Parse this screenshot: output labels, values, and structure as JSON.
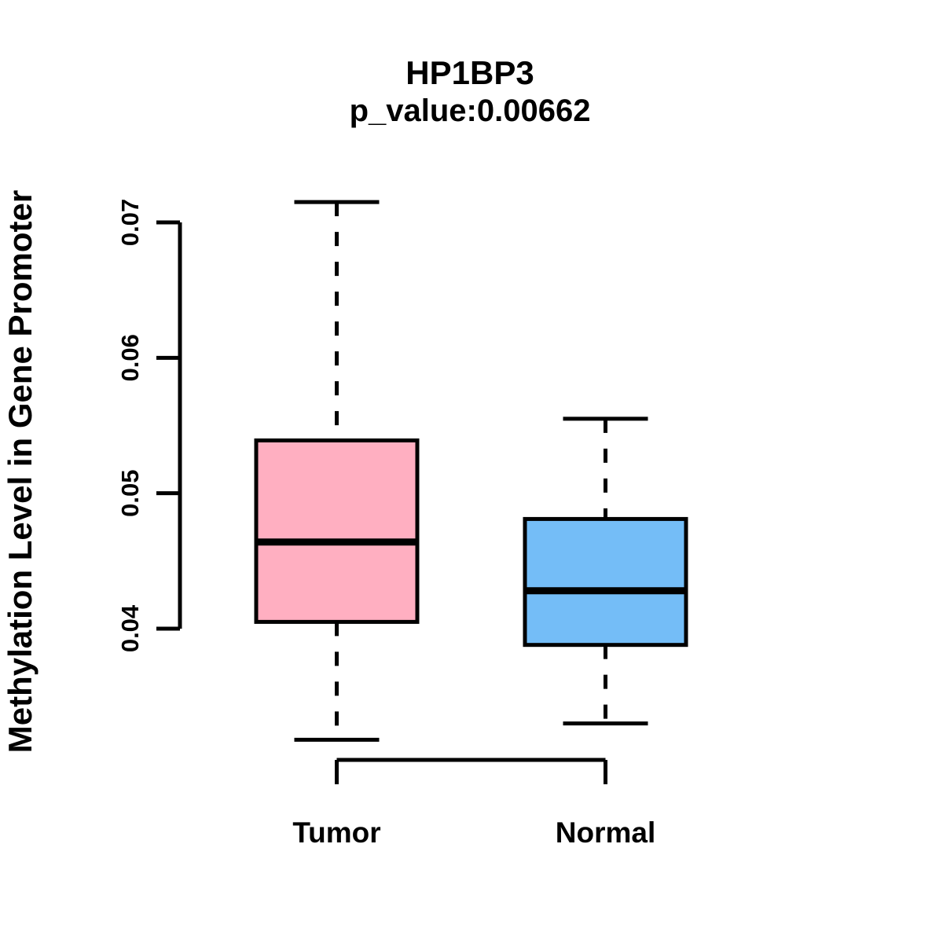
{
  "figure": {
    "background": "#FFFFFF"
  },
  "chart_data": {
    "type": "boxplot",
    "title": "HP1BP3",
    "subtitle": "p_value:0.00662",
    "p_value": "0.00662",
    "ylabel": "Methylation Level in Gene Promoter",
    "xlabel": "",
    "y_tick_labels": [
      "0.04",
      "0.05",
      "0.06",
      "0.07"
    ],
    "y_tick_values": [
      0.04,
      0.05,
      0.06,
      0.07
    ],
    "y_axis_range": [
      0.04,
      0.07
    ],
    "categories": [
      "Tumor",
      "Normal"
    ],
    "series": [
      {
        "name": "Tumor",
        "fill_color": "#FFAFC1",
        "lower_whisker": 0.0318,
        "q1": 0.0405,
        "median": 0.0464,
        "q3": 0.0539,
        "upper_whisker": 0.0715
      },
      {
        "name": "Normal",
        "fill_color": "#74BDF7",
        "lower_whisker": 0.033,
        "q1": 0.0388,
        "median": 0.0428,
        "q3": 0.0481,
        "upper_whisker": 0.0555
      }
    ],
    "stroke_color": "#000000",
    "whisker_line_style": "dashed",
    "grid": false,
    "legend": "none"
  }
}
